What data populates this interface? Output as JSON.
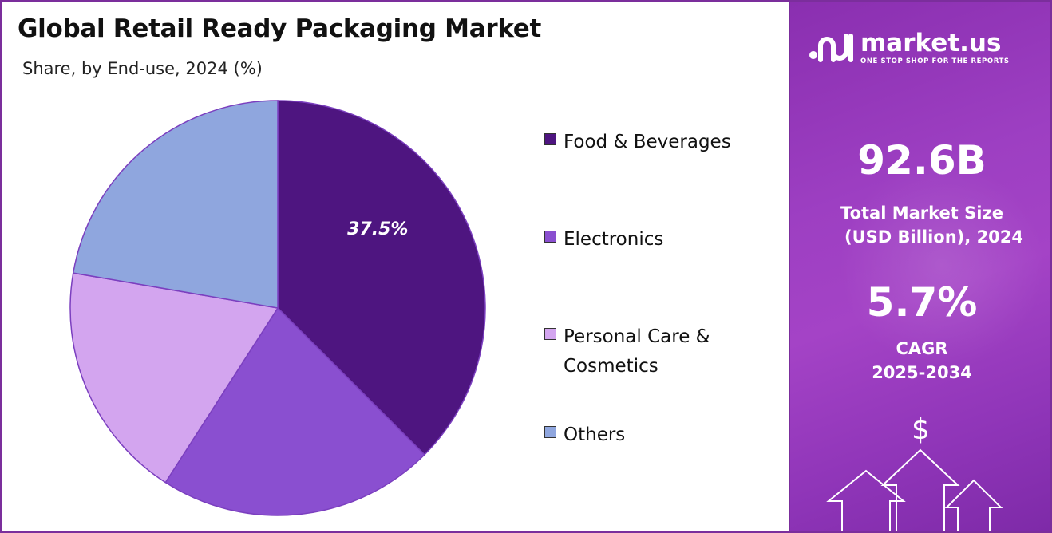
{
  "header": {
    "title": "Global Retail Ready Packaging Market",
    "subtitle": "Share, by End-use, 2024 (%)"
  },
  "chart_data": {
    "type": "pie",
    "title": "Global Retail Ready Packaging Market",
    "subtitle": "Share, by End-use, 2024 (%)",
    "categories": [
      "Food & Beverages",
      "Electronics",
      "Personal Care & Cosmetics",
      "Others"
    ],
    "values": [
      37.5,
      21.6,
      18.6,
      22.3
    ],
    "data_labels": [
      "37.5%",
      "",
      "",
      ""
    ],
    "colors": [
      "#4e1580",
      "#8a4fd0",
      "#d3a5ef",
      "#8fa6de"
    ],
    "legend_position": "right",
    "start_angle_deg": 0,
    "direction": "clockwise"
  },
  "legend": {
    "items": [
      {
        "label": "Food & Beverages"
      },
      {
        "label": "Electronics"
      },
      {
        "label": "Personal Care & Cosmetics"
      },
      {
        "label": "Others"
      }
    ]
  },
  "brand": {
    "name": "market.us",
    "tagline": "ONE STOP SHOP FOR THE REPORTS"
  },
  "stats": {
    "market_size_value": "92.6B",
    "market_size_label_1": "Total Market Size",
    "market_size_label_2": "(USD Billion), 2024",
    "cagr_value": "5.7%",
    "cagr_label_1": "CAGR",
    "cagr_label_2": "2025-2034"
  },
  "decor": {
    "dollar_symbol": "$",
    "icons": [
      "market-us-logo-icon",
      "dollar-icon",
      "up-arrow-icon"
    ]
  }
}
